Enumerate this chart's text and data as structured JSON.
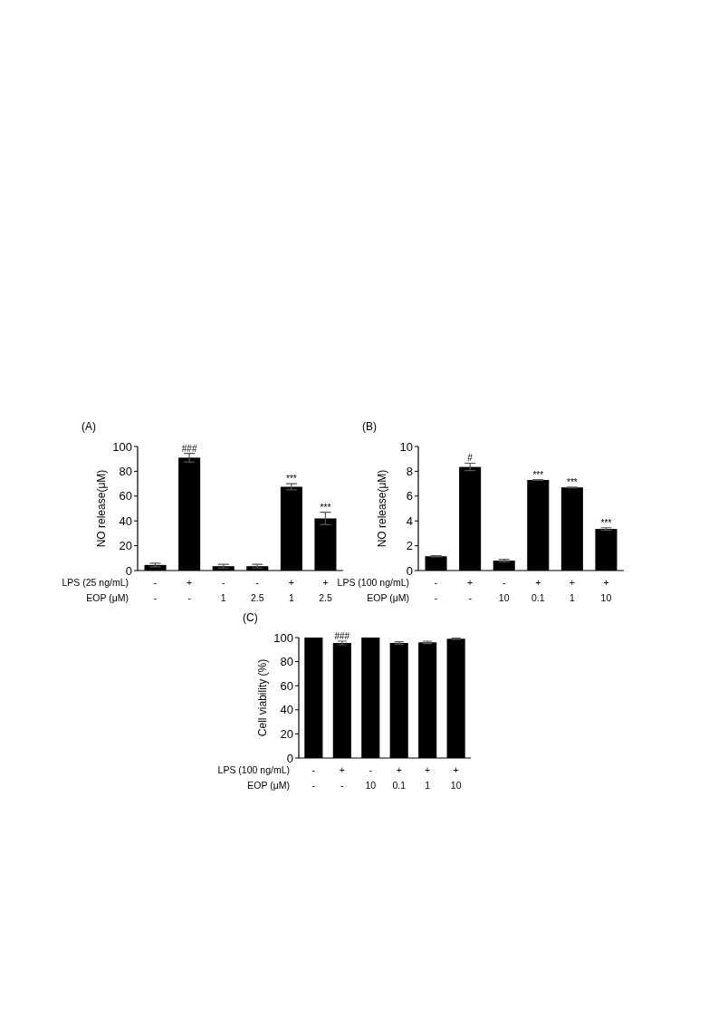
{
  "chart_data": [
    {
      "type": "bar",
      "title": "(A)",
      "ylabel": "NO release(μM)",
      "xlabel": "LPS (25 ng/mL)\nEOP (μM)",
      "categories": [
        "-\n-",
        "+\n-",
        "-\n1",
        "-\n2.5",
        "+\n1",
        "+\n2.5"
      ],
      "values": [
        4.5,
        91,
        3.5,
        3.5,
        67.5,
        42
      ],
      "errors": [
        1.5,
        3.5,
        1.5,
        1.5,
        2.5,
        5
      ],
      "color": "#000000",
      "ylim": [
        0,
        100
      ],
      "yticks": [
        0,
        20,
        40,
        60,
        80,
        100
      ],
      "annotations": [
        {
          "text": "###",
          "x": "+\n-",
          "y": 94.5
        },
        {
          "text": "***",
          "x": "+\n1",
          "y": 70
        },
        {
          "text": "***",
          "x": "+\n2.5",
          "y": 47
        }
      ]
    },
    {
      "type": "bar",
      "title": "(B)",
      "ylabel": "NO release(μM)",
      "xlabel": "LPS (100 ng/mL)\nEOP (μM)",
      "categories": [
        "-\n-",
        "+\n-",
        "-\n10",
        "+\n0.1",
        "+\n1",
        "+\n10"
      ],
      "values": [
        1.15,
        8.35,
        0.8,
        7.3,
        6.7,
        3.35
      ],
      "errors": [
        0.05,
        0.3,
        0.1,
        0.03,
        0.03,
        0.1
      ],
      "color": "#000000",
      "ylim": [
        0,
        10
      ],
      "yticks": [
        0,
        2,
        4,
        6,
        8,
        10
      ],
      "annotations": [
        {
          "text": "#",
          "x": "+\n-",
          "y": 8.65
        },
        {
          "text": "***",
          "x": "+\n0.1",
          "y": 7.33
        },
        {
          "text": "***",
          "x": "+\n1",
          "y": 6.73
        },
        {
          "text": "***",
          "x": "+\n10",
          "y": 3.45
        }
      ]
    },
    {
      "type": "bar",
      "title": "(C)",
      "ylabel": "Cell viability (%)",
      "xlabel": "LPS (100 ng/mL)\nEOP (μM)",
      "categories": [
        "-\n-",
        "+\n-",
        "-\n10",
        "+\n0.1",
        "+\n1",
        "+\n10"
      ],
      "values": [
        100,
        95.5,
        100,
        95.5,
        96,
        99
      ],
      "errors": [
        null,
        1.5,
        null,
        1,
        1,
        0.5
      ],
      "color": "#000000",
      "ylim": [
        0,
        100
      ],
      "yticks": [
        0,
        20,
        40,
        60,
        80,
        100
      ],
      "annotations": [
        {
          "text": "###",
          "x": "+\n-",
          "y": 97
        }
      ]
    }
  ]
}
